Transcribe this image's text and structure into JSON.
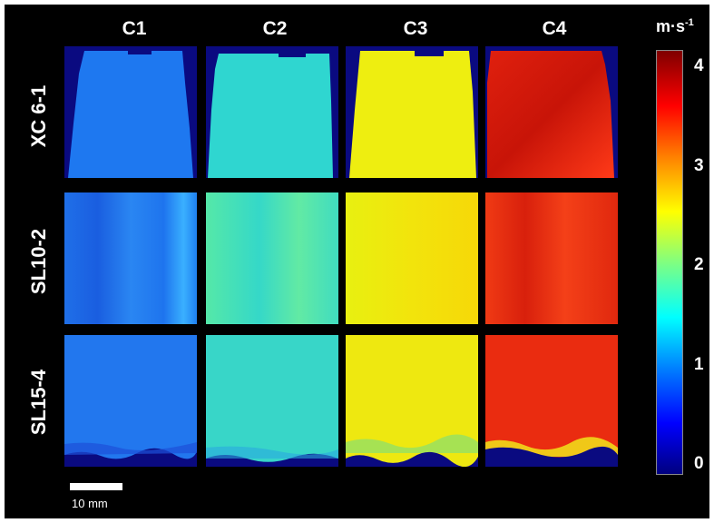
{
  "columns": [
    "C1",
    "C2",
    "C3",
    "C4"
  ],
  "rows": [
    "XC 6-1",
    "SL10-2",
    "SL15-4"
  ],
  "colorbar": {
    "unit_base": "m·s",
    "unit_exp": "-1",
    "ticks": [
      "4",
      "3",
      "2",
      "1",
      "0"
    ],
    "range": [
      0,
      4.2
    ]
  },
  "scale_bar": {
    "label": "10 mm"
  },
  "panel_colors": {
    "C1": "#1e78f0",
    "C2": "#2fd6d0",
    "C3": "#eeee10",
    "C4": "#ee2a12",
    "background": "#0a0a80"
  }
}
